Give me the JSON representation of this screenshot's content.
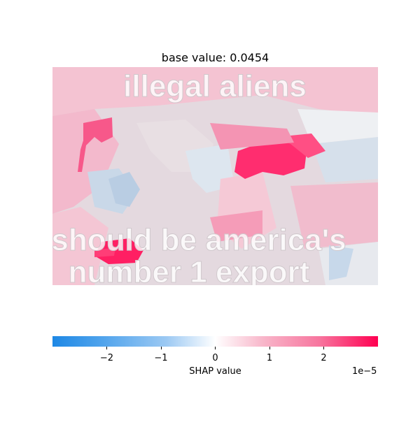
{
  "chart_data": {
    "type": "heatmap",
    "title": "base value: 0.0454",
    "image_caption_lines": [
      "illegal aliens",
      "should be america's",
      "number 1 export"
    ],
    "colorbar": {
      "label": "SHAP value",
      "offset_text": "1e−5",
      "ticks": [
        {
          "value": -2,
          "label": "−2"
        },
        {
          "value": -1,
          "label": "−1"
        },
        {
          "value": 0,
          "label": "0"
        },
        {
          "value": 1,
          "label": "1"
        },
        {
          "value": 2,
          "label": "2"
        }
      ],
      "range": [
        -3,
        3
      ],
      "colors": {
        "negative": "#1e88e5",
        "zero": "#ffffff",
        "positive": "#ff0051"
      }
    }
  }
}
